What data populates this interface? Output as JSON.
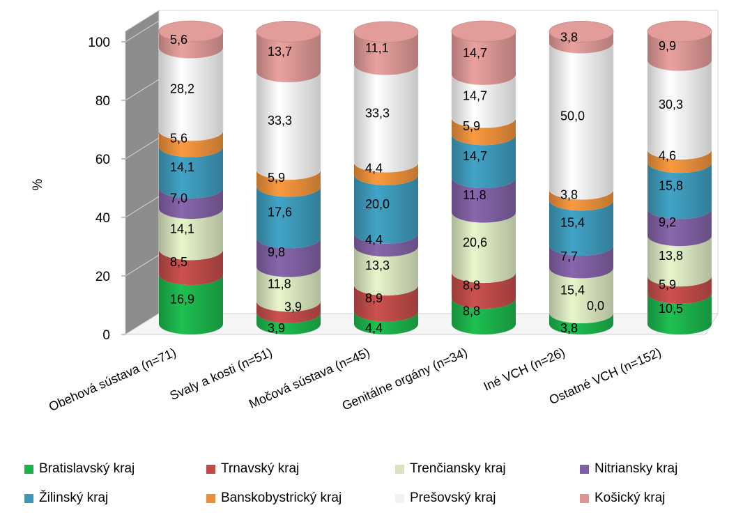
{
  "chart_data": {
    "type": "bar",
    "stacked": true,
    "three_d": true,
    "ylabel": "%",
    "ylim": [
      0,
      100
    ],
    "yticks": [
      "0",
      "20",
      "40",
      "60",
      "80",
      "100"
    ],
    "categories": [
      "Obehová sústava (n=71)",
      "Svaly a kosti (n=51)",
      "Močová sústava (n=45)",
      "Genitálne orgány (n=34)",
      "Iné VCH (n=26)",
      "Ostatné VCH (n=152)"
    ],
    "series": [
      {
        "name": "Bratislavský kraj",
        "color": "#1cb24b",
        "values": [
          16.9,
          3.9,
          4.4,
          8.8,
          3.8,
          10.5
        ],
        "labels": [
          "16,9",
          "3,9",
          "4,4",
          "8,8",
          "3,8",
          "10,5"
        ]
      },
      {
        "name": "Trnavský kraj",
        "color": "#be4b48",
        "values": [
          8.5,
          3.9,
          8.9,
          8.8,
          0.0,
          5.9
        ],
        "labels": [
          "8,5",
          "3,9",
          "8,9",
          "8,8",
          "0,0",
          "5,9"
        ]
      },
      {
        "name": "Trenčiansky kraj",
        "color": "#d7e4bd",
        "values": [
          14.1,
          11.8,
          13.3,
          20.6,
          15.4,
          13.8
        ],
        "labels": [
          "14,1",
          "11,8",
          "13,3",
          "20,6",
          "15,4",
          "13,8"
        ]
      },
      {
        "name": "Nitriansky kraj",
        "color": "#7e5fa0",
        "values": [
          7.0,
          9.8,
          4.4,
          11.8,
          7.7,
          9.2
        ],
        "labels": [
          "7,0",
          "9,8",
          "4,4",
          "11,8",
          "7,7",
          "9,2"
        ]
      },
      {
        "name": "Žilinský kraj",
        "color": "#3d98b8",
        "values": [
          14.1,
          17.6,
          20.0,
          14.7,
          15.4,
          15.8
        ],
        "labels": [
          "14,1",
          "17,6",
          "20,0",
          "14,7",
          "15,4",
          "15,8"
        ]
      },
      {
        "name": "Banskobystrický kraj",
        "color": "#e88f3b",
        "values": [
          5.6,
          5.9,
          4.4,
          5.9,
          3.8,
          4.6
        ],
        "labels": [
          "5,6",
          "5,9",
          "4,4",
          "5,9",
          "3,8",
          "4,6"
        ]
      },
      {
        "name": "Prešovský kraj",
        "color": "#f2f2f2",
        "values": [
          28.2,
          33.3,
          33.3,
          14.7,
          50.0,
          30.3
        ],
        "labels": [
          "28,2",
          "33,3",
          "33,3",
          "14,7",
          "50,0",
          "30,3"
        ]
      },
      {
        "name": "Košický kraj",
        "color": "#d99694",
        "values": [
          5.6,
          13.7,
          11.1,
          14.7,
          3.8,
          9.9
        ],
        "labels": [
          "5,6",
          "13,7",
          "11,1",
          "14,7",
          "3,8",
          "9,9"
        ]
      }
    ],
    "grid": false,
    "legend_position": "bottom"
  }
}
